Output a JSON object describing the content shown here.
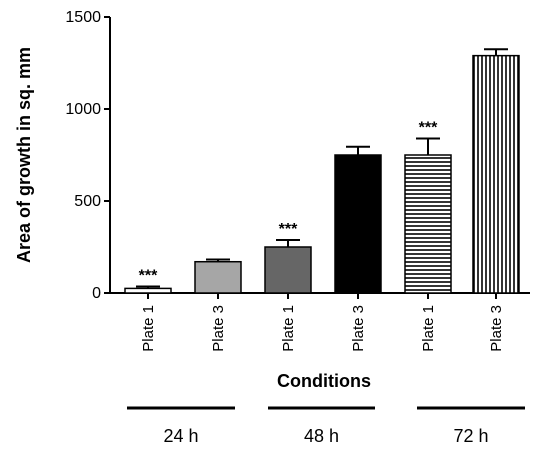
{
  "chart_data": {
    "type": "bar",
    "ylabel": "Area of growth in sq. mm",
    "xlabel": "Conditions",
    "ylim": [
      0,
      1500
    ],
    "yticks": [
      0,
      500,
      1000,
      1500
    ],
    "grid": false,
    "categories": [
      "Plate 1",
      "Plate 3",
      "Plate 1",
      "Plate 3",
      "Plate 1",
      "Plate 3"
    ],
    "values": [
      25,
      170,
      250,
      750,
      750,
      1290
    ],
    "errors": [
      10,
      12,
      38,
      45,
      90,
      35
    ],
    "significance": [
      "***",
      "",
      "***",
      "",
      "***",
      ""
    ],
    "fills": [
      "white",
      "light-gray",
      "dark-gray",
      "black",
      "horizontal-stripes",
      "vertical-stripes"
    ],
    "groups": [
      {
        "label": "24 h",
        "bars": [
          0,
          1
        ]
      },
      {
        "label": "48 h",
        "bars": [
          2,
          3
        ]
      },
      {
        "label": "72 h",
        "bars": [
          4,
          5
        ]
      }
    ],
    "colors": {
      "light_gray": "#a6a6a6",
      "dark_gray": "#666666",
      "black": "#000000"
    }
  }
}
